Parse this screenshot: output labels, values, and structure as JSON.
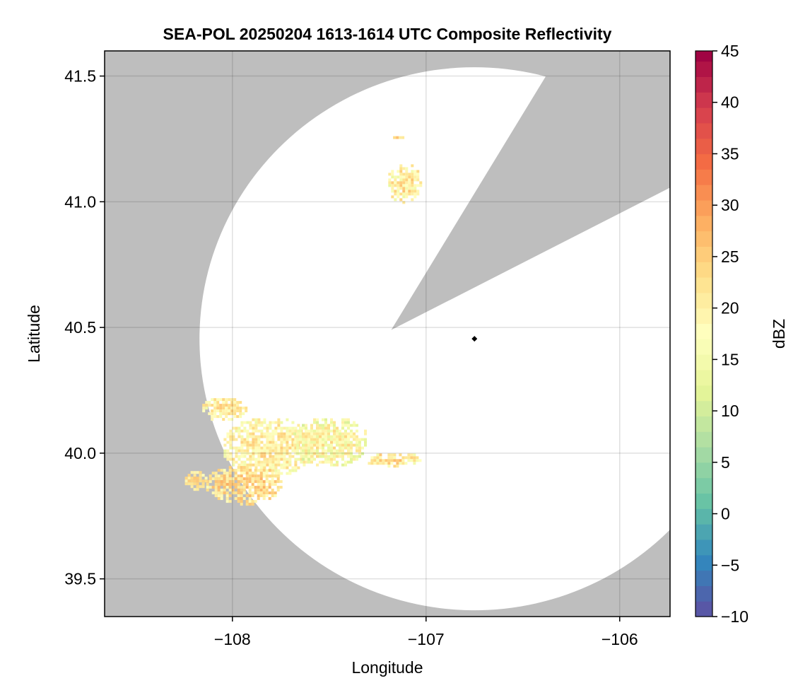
{
  "chart_data": {
    "type": "heatmap",
    "title": "SEA-POL 20250204 1613-1614 UTC Composite Reflectivity",
    "xlabel": "Longitude",
    "ylabel": "Latitude",
    "xlim": [
      -108.66,
      -105.74
    ],
    "ylim": [
      39.35,
      41.6
    ],
    "xticks": [
      -108,
      -107,
      -106
    ],
    "xtick_labels": [
      "−108",
      "−107",
      "−106"
    ],
    "yticks": [
      39.5,
      40.0,
      40.5,
      41.0,
      41.5
    ],
    "ytick_labels": [
      "39.5",
      "40.0",
      "40.5",
      "41.0",
      "41.5"
    ],
    "grid": true,
    "background_color": "#bebebe",
    "radar": {
      "center_lon": -106.75,
      "center_lat": 40.455,
      "range_lat_deg": 1.08,
      "range_lon_deg": 1.42,
      "blocked_sector_deg": [
        15,
        53
      ]
    },
    "radar_marker": {
      "lon": -106.75,
      "lat": 40.455,
      "shape": "diamond",
      "color": "#000000"
    },
    "colorbar": {
      "label": "dBZ",
      "min": -10,
      "max": 45,
      "step": 1.5,
      "ticks": [
        -10,
        -5,
        0,
        5,
        10,
        15,
        20,
        25,
        30,
        35,
        40,
        45
      ],
      "tick_labels": [
        "−10",
        "−5",
        "0",
        "5",
        "10",
        "15",
        "20",
        "25",
        "30",
        "35",
        "40",
        "45"
      ],
      "colormap": "Spectral_r"
    },
    "echo_regions": [
      {
        "name": "northern-cell",
        "center_lon": -107.12,
        "center_lat": 41.08,
        "half_width_lon": 0.09,
        "half_height_lat": 0.08,
        "dbz_mean": 21,
        "dbz_spread": 6
      },
      {
        "name": "northern-fragment",
        "center_lon": -107.15,
        "center_lat": 41.26,
        "half_width_lon": 0.035,
        "half_height_lat": 0.012,
        "dbz_mean": 24,
        "dbz_spread": 3
      },
      {
        "name": "main-band-west",
        "center_lon": -107.82,
        "center_lat": 40.03,
        "half_width_lon": 0.24,
        "half_height_lat": 0.12,
        "dbz_mean": 21,
        "dbz_spread": 5
      },
      {
        "name": "main-band-east",
        "center_lon": -107.5,
        "center_lat": 40.05,
        "half_width_lon": 0.2,
        "half_height_lat": 0.1,
        "dbz_mean": 19,
        "dbz_spread": 6
      },
      {
        "name": "southern-cell",
        "center_lon": -107.95,
        "center_lat": 39.88,
        "half_width_lon": 0.2,
        "half_height_lat": 0.08,
        "dbz_mean": 24,
        "dbz_spread": 5
      },
      {
        "name": "northwest-streak",
        "center_lon": -108.05,
        "center_lat": 40.18,
        "half_width_lon": 0.12,
        "half_height_lat": 0.05,
        "dbz_mean": 21,
        "dbz_spread": 5
      },
      {
        "name": "eastern-streak",
        "center_lon": -107.18,
        "center_lat": 39.98,
        "half_width_lon": 0.15,
        "half_height_lat": 0.03,
        "dbz_mean": 22,
        "dbz_spread": 6
      },
      {
        "name": "southwest-cell",
        "center_lon": -108.2,
        "center_lat": 39.9,
        "half_width_lon": 0.06,
        "half_height_lat": 0.04,
        "dbz_mean": 23,
        "dbz_spread": 3
      },
      {
        "name": "western-dot",
        "center_lon": -108.37,
        "center_lat": 40.09,
        "half_width_lon": 0.012,
        "half_height_lat": 0.01,
        "dbz_mean": 25,
        "dbz_spread": 1
      }
    ]
  }
}
